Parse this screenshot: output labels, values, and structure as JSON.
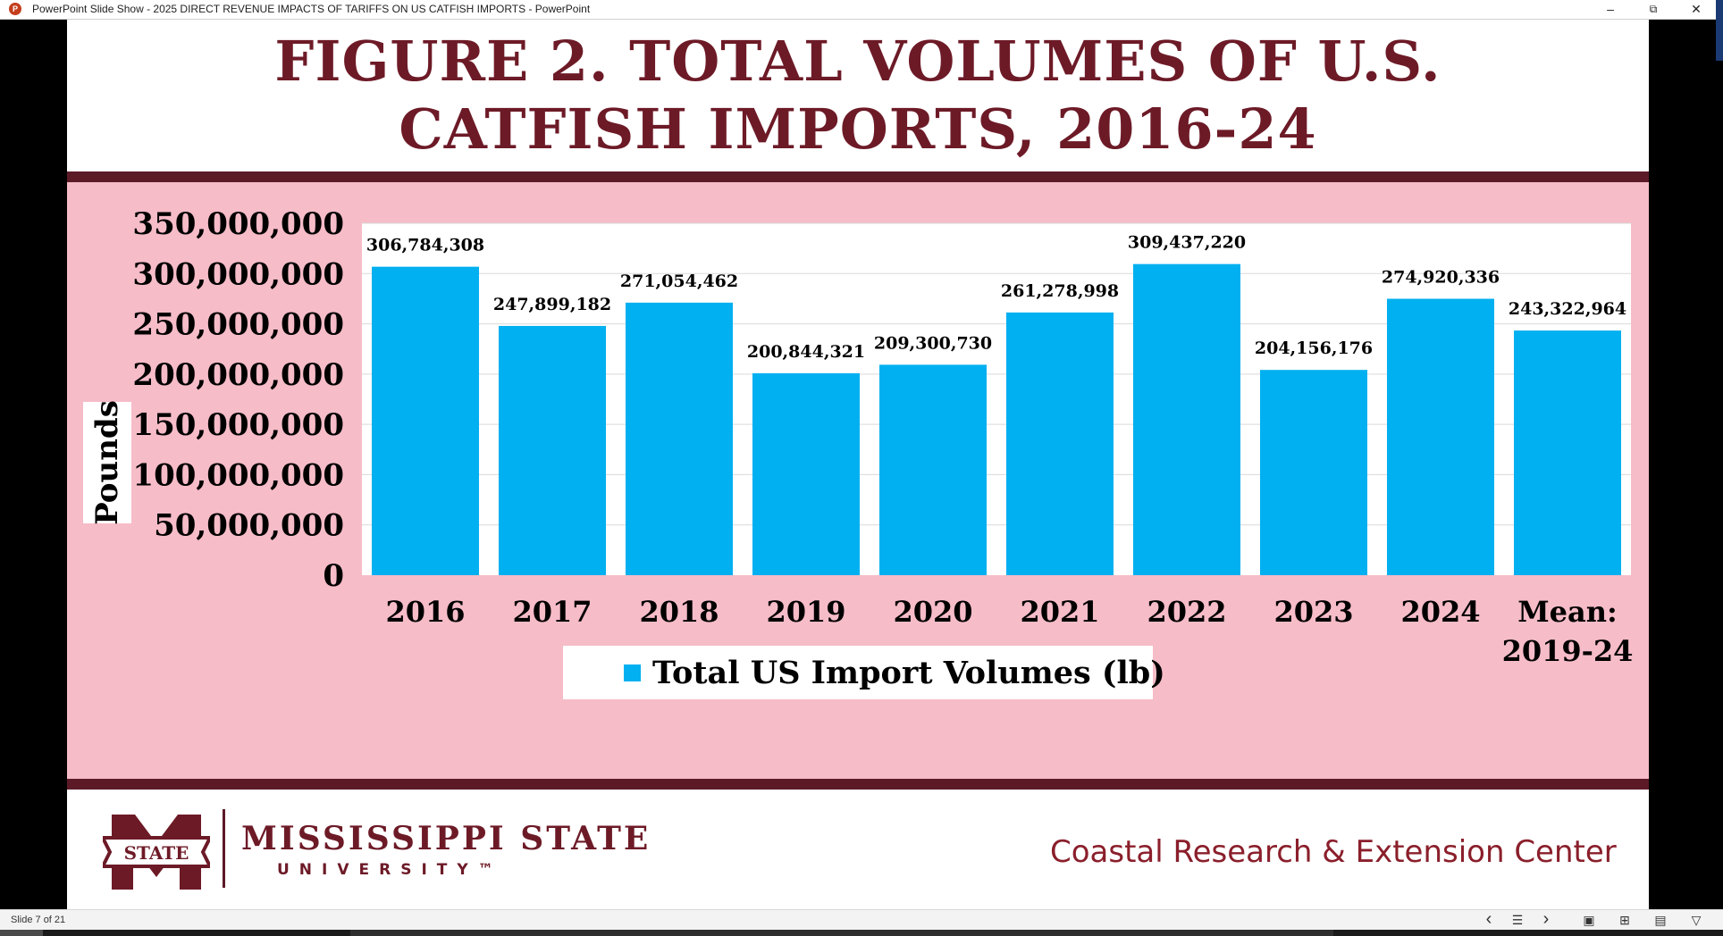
{
  "window": {
    "app_icon_letter": "P",
    "title": "PowerPoint Slide Show  -  2025 DIRECT REVENUE IMPACTS OF TARIFFS ON US CATFISH IMPORTS - PowerPoint",
    "minimize": "–",
    "restore": "⧉",
    "close": "✕"
  },
  "slide": {
    "title": "FIGURE 2. TOTAL VOLUMES OF U.S. CATFISH IMPORTS, 2016-24"
  },
  "chart_data": {
    "type": "bar",
    "categories": [
      "2016",
      "2017",
      "2018",
      "2019",
      "2020",
      "2021",
      "2022",
      "2023",
      "2024",
      "Mean: 2019-24"
    ],
    "series": [
      {
        "name": "Total US Import Volumes (lb)",
        "values": [
          306784308,
          247899182,
          271054462,
          200844321,
          209300730,
          261278998,
          309437220,
          204156176,
          274920336,
          243322964
        ],
        "labels": [
          "306,784,308",
          "247,899,182",
          "271,054,462",
          "200,844,321",
          "209,300,730",
          "261,278,998",
          "309,437,220",
          "204,156,176",
          "274,920,336",
          "243,322,964"
        ]
      }
    ],
    "ylabel": "Pounds",
    "xlabel": "",
    "ylim": [
      0,
      350000000
    ],
    "yticks": [
      0,
      50000000,
      100000000,
      150000000,
      200000000,
      250000000,
      300000000,
      350000000
    ],
    "ytick_labels": [
      "0",
      "50,000,000",
      "100,000,000",
      "150,000,000",
      "200,000,000",
      "250,000,000",
      "300,000,000",
      "350,000,000"
    ],
    "grid": true,
    "legend_position": "bottom",
    "bar_color": "#00b0f0"
  },
  "footer": {
    "logo_text": "STATE",
    "university_name": "MISSISSIPPI STATE",
    "university_sub": "UNIVERSITY™",
    "center_name": "Coastal Research & Extension Center"
  },
  "statusbar": {
    "slide_counter": "Slide 7 of 21",
    "prev": "‹",
    "menu": "☰",
    "next": "›",
    "normal_view": "▣",
    "sorter_view": "⊞",
    "reading_view": "▤",
    "slideshow_view": "▽"
  }
}
